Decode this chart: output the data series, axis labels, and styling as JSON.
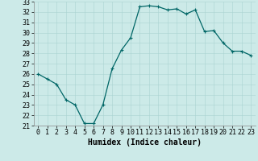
{
  "x": [
    0,
    1,
    2,
    3,
    4,
    5,
    6,
    7,
    8,
    9,
    10,
    11,
    12,
    13,
    14,
    15,
    16,
    17,
    18,
    19,
    20,
    21,
    22,
    23
  ],
  "y": [
    26,
    25.5,
    25,
    23.5,
    23,
    21.2,
    21.2,
    23,
    26.5,
    28.3,
    29.5,
    32.5,
    32.6,
    32.5,
    32.2,
    32.3,
    31.8,
    32.2,
    30.1,
    30.2,
    29,
    28.2,
    28.2,
    27.8
  ],
  "line_color": "#006666",
  "marker": "+",
  "marker_size": 3,
  "marker_lw": 0.8,
  "bg_color": "#cceae8",
  "grid_color": "#aad4d1",
  "xlabel": "Humidex (Indice chaleur)",
  "ylim": [
    21,
    33
  ],
  "xlim_min": -0.5,
  "xlim_max": 23.5,
  "yticks": [
    21,
    22,
    23,
    24,
    25,
    26,
    27,
    28,
    29,
    30,
    31,
    32,
    33
  ],
  "xticks": [
    0,
    1,
    2,
    3,
    4,
    5,
    6,
    7,
    8,
    9,
    10,
    11,
    12,
    13,
    14,
    15,
    16,
    17,
    18,
    19,
    20,
    21,
    22,
    23
  ],
  "xlabel_fontsize": 7,
  "tick_fontsize": 6,
  "line_width": 0.9
}
